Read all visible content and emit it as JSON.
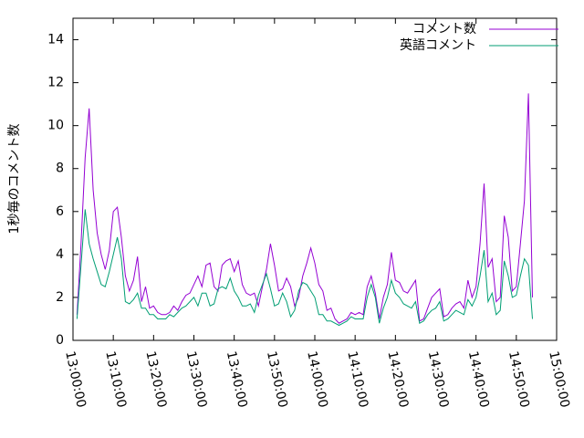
{
  "chart_data": {
    "type": "line",
    "ylabel": "1秒毎のコメント数",
    "x": [
      "13:01:00",
      "13:02:00",
      "13:03:00",
      "13:04:00",
      "13:05:00",
      "13:06:00",
      "13:07:00",
      "13:08:00",
      "13:09:00",
      "13:10:00",
      "13:11:00",
      "13:12:00",
      "13:13:00",
      "13:14:00",
      "13:15:00",
      "13:16:00",
      "13:17:00",
      "13:18:00",
      "13:19:00",
      "13:20:00",
      "13:21:00",
      "13:22:00",
      "13:23:00",
      "13:24:00",
      "13:25:00",
      "13:26:00",
      "13:27:00",
      "13:28:00",
      "13:29:00",
      "13:30:00",
      "13:31:00",
      "13:32:00",
      "13:33:00",
      "13:34:00",
      "13:35:00",
      "13:36:00",
      "13:37:00",
      "13:38:00",
      "13:39:00",
      "13:40:00",
      "13:41:00",
      "13:42:00",
      "13:43:00",
      "13:44:00",
      "13:45:00",
      "13:46:00",
      "13:47:00",
      "13:48:00",
      "13:49:00",
      "13:50:00",
      "13:51:00",
      "13:52:00",
      "13:53:00",
      "13:54:00",
      "13:55:00",
      "13:56:00",
      "13:57:00",
      "13:58:00",
      "13:59:00",
      "14:00:00",
      "14:01:00",
      "14:02:00",
      "14:03:00",
      "14:04:00",
      "14:05:00",
      "14:06:00",
      "14:07:00",
      "14:08:00",
      "14:09:00",
      "14:10:00",
      "14:11:00",
      "14:12:00",
      "14:13:00",
      "14:14:00",
      "14:15:00",
      "14:16:00",
      "14:17:00",
      "14:18:00",
      "14:19:00",
      "14:20:00",
      "14:21:00",
      "14:22:00",
      "14:23:00",
      "14:24:00",
      "14:25:00",
      "14:26:00",
      "14:27:00",
      "14:28:00",
      "14:29:00",
      "14:30:00",
      "14:31:00",
      "14:32:00",
      "14:33:00",
      "14:34:00",
      "14:35:00",
      "14:36:00",
      "14:37:00",
      "14:38:00",
      "14:39:00",
      "14:40:00",
      "14:41:00",
      "14:42:00",
      "14:43:00",
      "14:44:00",
      "14:45:00",
      "14:46:00",
      "14:47:00",
      "14:48:00",
      "14:49:00",
      "14:50:00",
      "14:51:00",
      "14:52:00",
      "14:53:00",
      "14:54:00"
    ],
    "series": [
      {
        "name": "コメント数",
        "color": "#9400d3",
        "values": [
          1.2,
          4.5,
          8.5,
          10.8,
          7.0,
          5.0,
          4.0,
          3.3,
          4.2,
          6.0,
          6.2,
          4.8,
          3.0,
          2.3,
          2.8,
          3.9,
          1.8,
          2.5,
          1.5,
          1.6,
          1.3,
          1.2,
          1.2,
          1.3,
          1.6,
          1.4,
          1.8,
          2.1,
          2.2,
          2.6,
          3.0,
          2.5,
          3.5,
          3.6,
          2.5,
          2.3,
          3.5,
          3.7,
          3.8,
          3.2,
          3.7,
          2.6,
          2.2,
          2.1,
          2.2,
          1.6,
          2.5,
          3.3,
          4.5,
          3.5,
          2.3,
          2.4,
          2.9,
          2.5,
          1.6,
          2.0,
          3.0,
          3.6,
          4.3,
          3.6,
          2.6,
          2.3,
          1.4,
          1.5,
          1.0,
          0.8,
          0.9,
          1.0,
          1.3,
          1.2,
          1.3,
          1.2,
          2.5,
          3.0,
          2.2,
          1.0,
          2.0,
          2.6,
          4.1,
          2.8,
          2.7,
          2.3,
          2.2,
          2.5,
          2.8,
          0.9,
          1.0,
          1.5,
          2.0,
          2.2,
          2.4,
          1.1,
          1.2,
          1.5,
          1.7,
          1.8,
          1.5,
          2.8,
          2.0,
          2.5,
          4.5,
          7.3,
          3.4,
          3.8,
          1.8,
          2.0,
          5.8,
          4.8,
          2.3,
          2.5,
          4.5,
          6.5,
          11.5,
          2.0
        ]
      },
      {
        "name": "英語コメント",
        "color": "#009e73",
        "values": [
          1.0,
          3.5,
          6.1,
          4.5,
          3.8,
          3.2,
          2.6,
          2.5,
          3.2,
          4.0,
          4.8,
          3.8,
          1.8,
          1.7,
          1.9,
          2.2,
          1.5,
          1.5,
          1.2,
          1.2,
          1.0,
          1.0,
          1.0,
          1.2,
          1.1,
          1.3,
          1.5,
          1.6,
          1.8,
          2.0,
          1.6,
          2.2,
          2.2,
          1.6,
          1.7,
          2.4,
          2.5,
          2.4,
          2.9,
          2.3,
          2.0,
          1.6,
          1.6,
          1.7,
          1.3,
          2.1,
          2.6,
          3.1,
          2.4,
          1.6,
          1.7,
          2.2,
          1.8,
          1.1,
          1.4,
          2.3,
          2.7,
          2.6,
          2.3,
          2.0,
          1.2,
          1.2,
          0.9,
          0.9,
          0.8,
          0.7,
          0.8,
          0.9,
          1.1,
          1.0,
          1.0,
          1.0,
          2.0,
          2.6,
          2.0,
          0.8,
          1.5,
          2.0,
          2.8,
          2.2,
          2.0,
          1.7,
          1.6,
          1.5,
          1.8,
          0.8,
          0.9,
          1.2,
          1.4,
          1.5,
          1.8,
          0.9,
          1.0,
          1.2,
          1.4,
          1.3,
          1.2,
          1.9,
          1.6,
          2.0,
          3.0,
          4.2,
          1.8,
          2.2,
          1.2,
          1.4,
          3.7,
          3.0,
          2.0,
          2.1,
          3.0,
          3.8,
          3.5,
          1.0
        ]
      }
    ],
    "xlim": [
      "13:00:00",
      "15:00:00"
    ],
    "xticks": [
      "13:00:00",
      "13:10:00",
      "13:20:00",
      "13:30:00",
      "13:40:00",
      "13:50:00",
      "14:00:00",
      "14:10:00",
      "14:20:00",
      "14:30:00",
      "14:40:00",
      "14:50:00",
      "15:00:00"
    ],
    "ylim": [
      0,
      15
    ],
    "yticks": [
      0,
      2,
      4,
      6,
      8,
      10,
      12,
      14
    ],
    "legend": "top-right",
    "grid": false
  }
}
